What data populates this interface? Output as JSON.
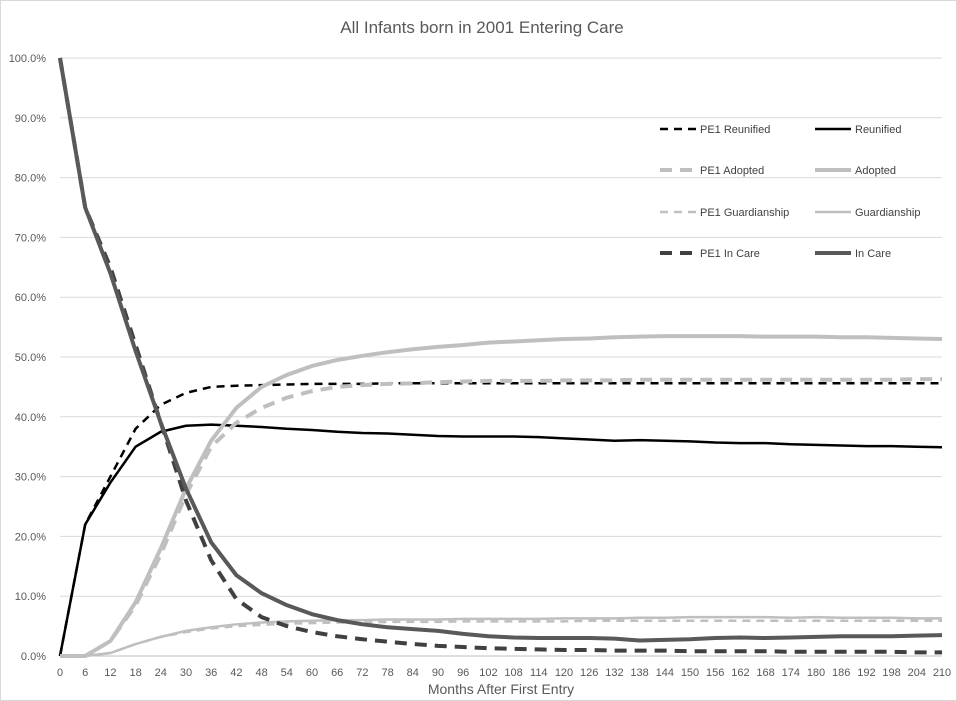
{
  "chart_data": {
    "type": "line",
    "title": "All Infants born in 2001 Entering Care",
    "xlabel": "Months After First Entry",
    "ylabel": "",
    "x": [
      0,
      6,
      12,
      18,
      24,
      30,
      36,
      42,
      48,
      54,
      60,
      66,
      72,
      78,
      84,
      90,
      96,
      102,
      108,
      114,
      120,
      126,
      132,
      138,
      144,
      150,
      156,
      162,
      168,
      174,
      180,
      186,
      192,
      198,
      204,
      210
    ],
    "x_tick_labels": [
      "0",
      "6",
      "12",
      "18",
      "24",
      "30",
      "36",
      "42",
      "48",
      "54",
      "60",
      "66",
      "72",
      "78",
      "84",
      "90",
      "96",
      "102",
      "108",
      "114",
      "120",
      "126",
      "132",
      "138",
      "144",
      "150",
      "156",
      "162",
      "168",
      "174",
      "180",
      "186",
      "192",
      "198",
      "204",
      "210"
    ],
    "ylim": [
      0,
      100
    ],
    "y_ticks": [
      0,
      10,
      20,
      30,
      40,
      50,
      60,
      70,
      80,
      90,
      100
    ],
    "y_tick_labels": [
      "0.0%",
      "10.0%",
      "20.0%",
      "30.0%",
      "40.0%",
      "50.0%",
      "60.0%",
      "70.0%",
      "80.0%",
      "90.0%",
      "100.0%"
    ],
    "grid": "horizontal",
    "legend_position": "top-right",
    "series": [
      {
        "name": "PE1 Reunified",
        "color": "#000000",
        "dash": "dashed",
        "width": 2.5,
        "values": [
          0,
          22,
          30,
          38,
          42,
          44,
          45,
          45.2,
          45.3,
          45.4,
          45.5,
          45.5,
          45.5,
          45.6,
          45.6,
          45.6,
          45.6,
          45.6,
          45.6,
          45.6,
          45.6,
          45.6,
          45.6,
          45.6,
          45.6,
          45.6,
          45.6,
          45.6,
          45.6,
          45.6,
          45.6,
          45.6,
          45.6,
          45.6,
          45.6,
          45.6
        ]
      },
      {
        "name": "Reunified",
        "color": "#000000",
        "dash": "solid",
        "width": 2.5,
        "values": [
          0,
          22,
          29,
          35,
          37.5,
          38.5,
          38.7,
          38.5,
          38.3,
          38,
          37.8,
          37.5,
          37.3,
          37.2,
          37,
          36.8,
          36.7,
          36.7,
          36.7,
          36.6,
          36.4,
          36.2,
          36,
          36.1,
          36,
          35.9,
          35.7,
          35.6,
          35.6,
          35.4,
          35.3,
          35.2,
          35.1,
          35.1,
          35,
          34.9
        ]
      },
      {
        "name": "PE1 Adopted",
        "color": "#bfbfbf",
        "dash": "dashed",
        "width": 4,
        "values": [
          0,
          0,
          2.5,
          8.5,
          17,
          27,
          35,
          39,
          41.5,
          43.2,
          44.3,
          45,
          45.3,
          45.5,
          45.6,
          45.8,
          45.9,
          46,
          46,
          46,
          46.1,
          46.1,
          46.1,
          46.2,
          46.2,
          46.2,
          46.2,
          46.2,
          46.2,
          46.2,
          46.2,
          46.2,
          46.2,
          46.2,
          46.3,
          46.3
        ]
      },
      {
        "name": "Adopted",
        "color": "#bfbfbf",
        "dash": "solid",
        "width": 4,
        "values": [
          0,
          0,
          2.5,
          9,
          18,
          28,
          36,
          41.5,
          45,
          47,
          48.5,
          49.5,
          50.2,
          50.8,
          51.3,
          51.7,
          52,
          52.4,
          52.6,
          52.8,
          53,
          53.1,
          53.3,
          53.4,
          53.5,
          53.5,
          53.5,
          53.5,
          53.4,
          53.4,
          53.4,
          53.3,
          53.3,
          53.2,
          53.1,
          53
        ]
      },
      {
        "name": "PE1 Guardianship",
        "color": "#bfbfbf",
        "dash": "dashed",
        "width": 2.5,
        "values": [
          0,
          0,
          0.5,
          2,
          3.2,
          4,
          4.6,
          5,
          5.2,
          5.4,
          5.5,
          5.6,
          5.6,
          5.7,
          5.7,
          5.7,
          5.8,
          5.8,
          5.8,
          5.8,
          5.8,
          5.9,
          5.9,
          5.9,
          5.9,
          5.9,
          5.9,
          5.9,
          5.9,
          5.9,
          5.9,
          5.9,
          5.9,
          5.9,
          5.9,
          5.9
        ]
      },
      {
        "name": "Guardianship",
        "color": "#bfbfbf",
        "dash": "solid",
        "width": 2.5,
        "values": [
          0,
          0,
          0.5,
          2,
          3.2,
          4.2,
          4.8,
          5.3,
          5.6,
          5.8,
          5.9,
          6,
          6,
          6.1,
          6.1,
          6.1,
          6.2,
          6.2,
          6.2,
          6.2,
          6.3,
          6.3,
          6.3,
          6.4,
          6.4,
          6.5,
          6.5,
          6.5,
          6.5,
          6.4,
          6.5,
          6.4,
          6.4,
          6.4,
          6.3,
          6.3
        ]
      },
      {
        "name": "PE1 In Care",
        "color": "#404040",
        "dash": "dashed",
        "width": 4,
        "values": [
          100,
          75,
          65,
          52,
          39,
          26,
          16,
          9.5,
          6.5,
          5,
          4,
          3.3,
          2.8,
          2.4,
          2,
          1.7,
          1.5,
          1.3,
          1.2,
          1.1,
          1,
          1,
          0.9,
          0.9,
          0.9,
          0.8,
          0.8,
          0.8,
          0.8,
          0.7,
          0.7,
          0.7,
          0.7,
          0.7,
          0.6,
          0.6
        ]
      },
      {
        "name": "In Care",
        "color": "#595959",
        "dash": "solid",
        "width": 4,
        "values": [
          100,
          75,
          64,
          51,
          39,
          28,
          19,
          13.5,
          10.5,
          8.5,
          7,
          6,
          5.3,
          4.8,
          4.5,
          4.2,
          3.7,
          3.3,
          3.1,
          3,
          3,
          3,
          2.9,
          2.6,
          2.7,
          2.8,
          3,
          3.1,
          3,
          3.1,
          3.2,
          3.3,
          3.3,
          3.3,
          3.4,
          3.5
        ]
      }
    ]
  }
}
